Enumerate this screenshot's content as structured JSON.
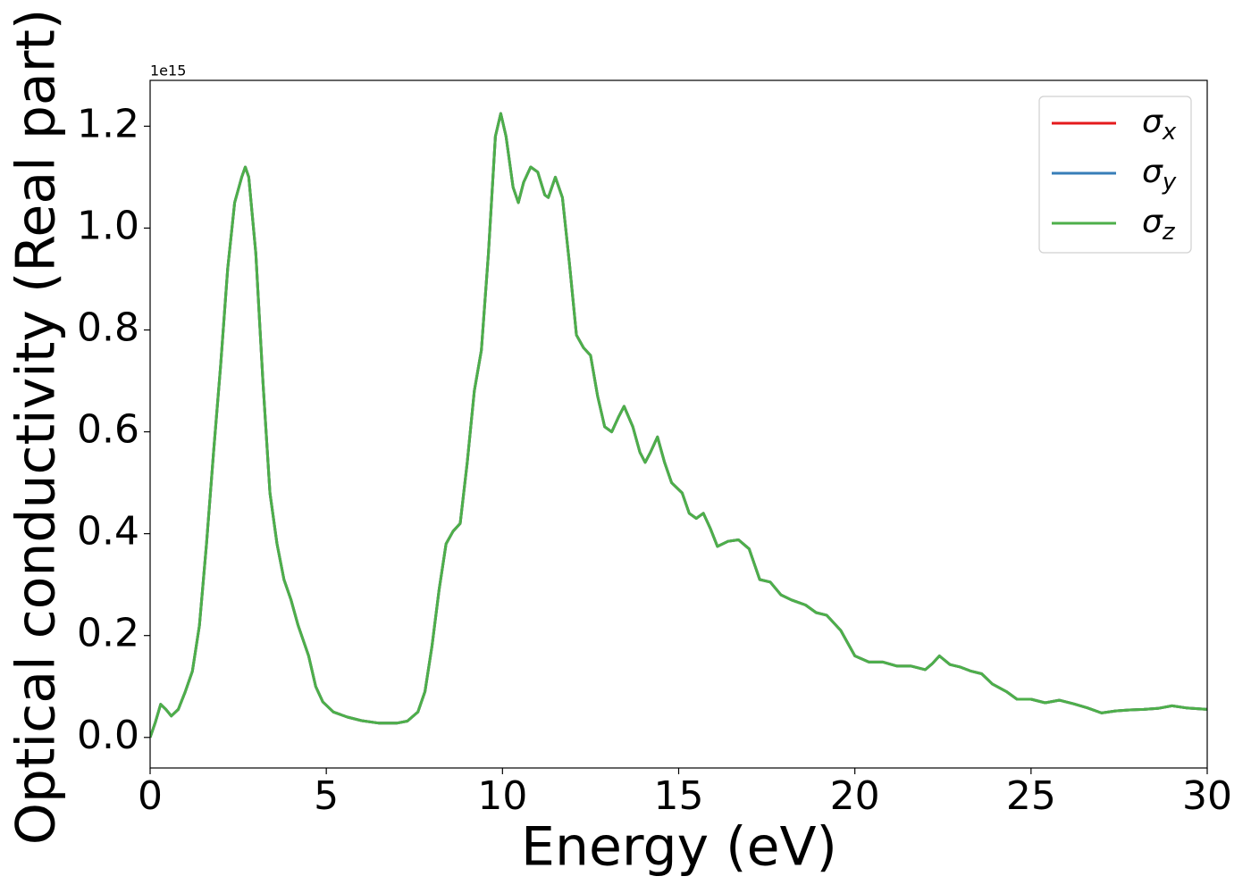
{
  "chart_data": {
    "type": "line",
    "xlabel": "Energy (eV)",
    "ylabel": "Optical conductivity (Real part)",
    "y_offset": "1e15",
    "x": [
      0,
      0.15,
      0.3,
      0.45,
      0.6,
      0.8,
      1.0,
      1.2,
      1.4,
      1.6,
      1.8,
      2.0,
      2.2,
      2.4,
      2.6,
      2.7,
      2.8,
      3.0,
      3.2,
      3.4,
      3.6,
      3.8,
      4.0,
      4.2,
      4.5,
      4.7,
      4.9,
      5.2,
      5.6,
      6.0,
      6.5,
      7.0,
      7.3,
      7.6,
      7.8,
      8.0,
      8.2,
      8.4,
      8.6,
      8.8,
      9.0,
      9.2,
      9.4,
      9.6,
      9.8,
      9.95,
      10.1,
      10.3,
      10.45,
      10.6,
      10.8,
      11.0,
      11.2,
      11.3,
      11.5,
      11.7,
      11.9,
      12.1,
      12.3,
      12.5,
      12.7,
      12.9,
      13.1,
      13.3,
      13.45,
      13.7,
      13.9,
      14.05,
      14.2,
      14.4,
      14.6,
      14.8,
      15.1,
      15.3,
      15.5,
      15.7,
      15.9,
      16.1,
      16.4,
      16.7,
      17.0,
      17.3,
      17.6,
      17.9,
      18.2,
      18.6,
      18.9,
      19.2,
      19.6,
      20.0,
      20.4,
      20.8,
      21.2,
      21.6,
      22.0,
      22.2,
      22.4,
      22.7,
      23.0,
      23.3,
      23.6,
      23.9,
      24.3,
      24.6,
      25.0,
      25.4,
      25.8,
      26.2,
      26.6,
      27.0,
      27.4,
      27.8,
      28.2,
      28.6,
      29.0,
      29.4,
      30.0
    ],
    "series": [
      {
        "name": "σx",
        "color": "#e41a1c",
        "values": [
          0,
          0.03,
          0.065,
          0.055,
          0.042,
          0.055,
          0.09,
          0.13,
          0.22,
          0.38,
          0.56,
          0.73,
          0.92,
          1.05,
          1.1,
          1.12,
          1.1,
          0.95,
          0.7,
          0.48,
          0.38,
          0.31,
          0.27,
          0.22,
          0.16,
          0.1,
          0.07,
          0.05,
          0.04,
          0.033,
          0.028,
          0.028,
          0.032,
          0.05,
          0.09,
          0.18,
          0.29,
          0.38,
          0.405,
          0.42,
          0.54,
          0.68,
          0.76,
          0.95,
          1.18,
          1.225,
          1.18,
          1.08,
          1.05,
          1.09,
          1.12,
          1.11,
          1.065,
          1.06,
          1.1,
          1.06,
          0.93,
          0.79,
          0.765,
          0.75,
          0.67,
          0.61,
          0.6,
          0.63,
          0.65,
          0.61,
          0.56,
          0.54,
          0.56,
          0.59,
          0.54,
          0.5,
          0.48,
          0.44,
          0.43,
          0.44,
          0.41,
          0.375,
          0.385,
          0.388,
          0.37,
          0.31,
          0.305,
          0.28,
          0.27,
          0.26,
          0.245,
          0.24,
          0.21,
          0.16,
          0.148,
          0.148,
          0.14,
          0.14,
          0.133,
          0.145,
          0.16,
          0.143,
          0.138,
          0.13,
          0.125,
          0.105,
          0.09,
          0.075,
          0.075,
          0.068,
          0.073,
          0.066,
          0.058,
          0.048,
          0.052,
          0.054,
          0.055,
          0.057,
          0.062,
          0.058,
          0.055
        ]
      },
      {
        "name": "σy",
        "color": "#377eb8",
        "values": [
          0,
          0.03,
          0.065,
          0.055,
          0.042,
          0.055,
          0.09,
          0.13,
          0.22,
          0.38,
          0.56,
          0.73,
          0.92,
          1.05,
          1.1,
          1.12,
          1.1,
          0.95,
          0.7,
          0.48,
          0.38,
          0.31,
          0.27,
          0.22,
          0.16,
          0.1,
          0.07,
          0.05,
          0.04,
          0.033,
          0.028,
          0.028,
          0.032,
          0.05,
          0.09,
          0.18,
          0.29,
          0.38,
          0.405,
          0.42,
          0.54,
          0.68,
          0.76,
          0.95,
          1.18,
          1.225,
          1.18,
          1.08,
          1.05,
          1.09,
          1.12,
          1.11,
          1.065,
          1.06,
          1.1,
          1.06,
          0.93,
          0.79,
          0.765,
          0.75,
          0.67,
          0.61,
          0.6,
          0.63,
          0.65,
          0.61,
          0.56,
          0.54,
          0.56,
          0.59,
          0.54,
          0.5,
          0.48,
          0.44,
          0.43,
          0.44,
          0.41,
          0.375,
          0.385,
          0.388,
          0.37,
          0.31,
          0.305,
          0.28,
          0.27,
          0.26,
          0.245,
          0.24,
          0.21,
          0.16,
          0.148,
          0.148,
          0.14,
          0.14,
          0.133,
          0.145,
          0.16,
          0.143,
          0.138,
          0.13,
          0.125,
          0.105,
          0.09,
          0.075,
          0.075,
          0.068,
          0.073,
          0.066,
          0.058,
          0.048,
          0.052,
          0.054,
          0.055,
          0.057,
          0.062,
          0.058,
          0.055
        ]
      },
      {
        "name": "σz",
        "color": "#4daf4a",
        "values": [
          0,
          0.03,
          0.065,
          0.055,
          0.042,
          0.055,
          0.09,
          0.13,
          0.22,
          0.38,
          0.56,
          0.73,
          0.92,
          1.05,
          1.1,
          1.12,
          1.1,
          0.95,
          0.7,
          0.48,
          0.38,
          0.31,
          0.27,
          0.22,
          0.16,
          0.1,
          0.07,
          0.05,
          0.04,
          0.033,
          0.028,
          0.028,
          0.032,
          0.05,
          0.09,
          0.18,
          0.29,
          0.38,
          0.405,
          0.42,
          0.54,
          0.68,
          0.76,
          0.95,
          1.18,
          1.225,
          1.18,
          1.08,
          1.05,
          1.09,
          1.12,
          1.11,
          1.065,
          1.06,
          1.1,
          1.06,
          0.93,
          0.79,
          0.765,
          0.75,
          0.67,
          0.61,
          0.6,
          0.63,
          0.65,
          0.61,
          0.56,
          0.54,
          0.56,
          0.59,
          0.54,
          0.5,
          0.48,
          0.44,
          0.43,
          0.44,
          0.41,
          0.375,
          0.385,
          0.388,
          0.37,
          0.31,
          0.305,
          0.28,
          0.27,
          0.26,
          0.245,
          0.24,
          0.21,
          0.16,
          0.148,
          0.148,
          0.14,
          0.14,
          0.133,
          0.145,
          0.16,
          0.143,
          0.138,
          0.13,
          0.125,
          0.105,
          0.09,
          0.075,
          0.075,
          0.068,
          0.073,
          0.066,
          0.058,
          0.048,
          0.052,
          0.054,
          0.055,
          0.057,
          0.062,
          0.058,
          0.055
        ]
      }
    ],
    "xlim": [
      0,
      30
    ],
    "xticks": [
      0,
      5,
      10,
      15,
      20,
      25,
      30
    ],
    "ylim": [
      -0.06,
      1.29
    ],
    "yticks": [
      {
        "value": 0,
        "label": "0.0"
      },
      0.2,
      0.4,
      0.6,
      0.8,
      {
        "value": 1,
        "label": "1.0"
      },
      1.2
    ],
    "grid": false,
    "legend": "upper right"
  }
}
